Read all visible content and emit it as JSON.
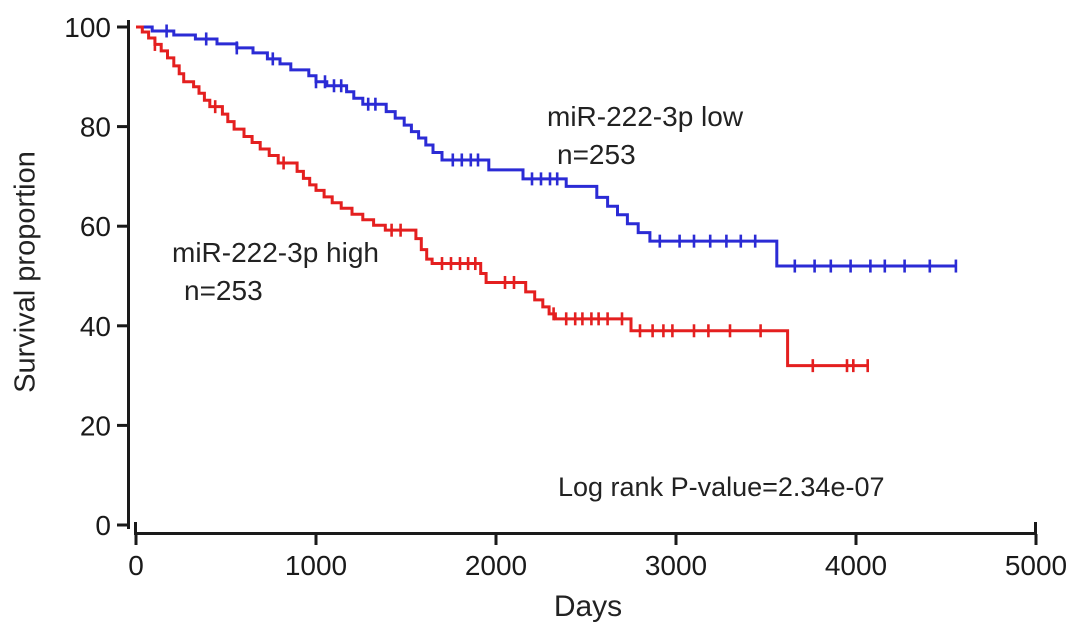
{
  "figure": {
    "background": "#ffffff",
    "axis_color": "#1a1a1a",
    "text_color": "#222222"
  },
  "chart_data": {
    "type": "line",
    "subtype": "kaplan-meier-step",
    "title": "",
    "xlabel": "Days",
    "ylabel": "Survival proportion",
    "xlim": [
      0,
      5000
    ],
    "ylim": [
      0,
      100
    ],
    "x_ticks": [
      0,
      1000,
      2000,
      3000,
      4000,
      5000
    ],
    "y_ticks": [
      0,
      20,
      40,
      60,
      80,
      100
    ],
    "grid": false,
    "legend_position": "inline-labels",
    "annotation": "Log rank P-value=2.34e-07",
    "series": [
      {
        "name": "miR-222-3p low",
        "n_label": "n=253",
        "color": "#2b2bd5",
        "steps": [
          [
            0,
            100
          ],
          [
            90,
            99.2
          ],
          [
            210,
            98.4
          ],
          [
            330,
            97.6
          ],
          [
            450,
            96.6
          ],
          [
            560,
            95.8
          ],
          [
            650,
            94.8
          ],
          [
            730,
            93.6
          ],
          [
            800,
            92.6
          ],
          [
            860,
            91.4
          ],
          [
            960,
            90.2
          ],
          [
            1000,
            89
          ],
          [
            1060,
            88.2
          ],
          [
            1170,
            87
          ],
          [
            1210,
            85.7
          ],
          [
            1260,
            84.5
          ],
          [
            1390,
            83
          ],
          [
            1440,
            81.7
          ],
          [
            1490,
            80.3
          ],
          [
            1530,
            79
          ],
          [
            1570,
            77.7
          ],
          [
            1610,
            76.3
          ],
          [
            1650,
            74.8
          ],
          [
            1700,
            73.3
          ],
          [
            1960,
            71.3
          ],
          [
            2150,
            69.5
          ],
          [
            2390,
            68
          ],
          [
            2560,
            65.8
          ],
          [
            2620,
            64
          ],
          [
            2675,
            62.3
          ],
          [
            2730,
            60.5
          ],
          [
            2790,
            58.7
          ],
          [
            2855,
            57
          ],
          [
            3560,
            52
          ],
          [
            4560,
            52
          ]
        ],
        "censor_ticks": [
          170,
          390,
          560,
          760,
          1000,
          1050,
          1100,
          1140,
          1290,
          1330,
          1760,
          1810,
          1860,
          1900,
          2200,
          2250,
          2300,
          2340,
          2910,
          3020,
          3100,
          3190,
          3280,
          3360,
          3440,
          3660,
          3770,
          3860,
          3970,
          4080,
          4160,
          4270,
          4410,
          4555
        ]
      },
      {
        "name": "miR-222-3p high",
        "n_label": "n=253",
        "color": "#e41f1f",
        "steps": [
          [
            0,
            100
          ],
          [
            35,
            99
          ],
          [
            70,
            97.8
          ],
          [
            105,
            96.5
          ],
          [
            140,
            95.2
          ],
          [
            175,
            93.8
          ],
          [
            210,
            92.2
          ],
          [
            240,
            90.6
          ],
          [
            265,
            89
          ],
          [
            320,
            88
          ],
          [
            350,
            86.7
          ],
          [
            380,
            85.3
          ],
          [
            410,
            84
          ],
          [
            480,
            82.5
          ],
          [
            510,
            81
          ],
          [
            545,
            79.5
          ],
          [
            600,
            78
          ],
          [
            645,
            76.8
          ],
          [
            690,
            75.5
          ],
          [
            740,
            74.2
          ],
          [
            790,
            72.7
          ],
          [
            895,
            71
          ],
          [
            930,
            69.6
          ],
          [
            965,
            68.3
          ],
          [
            1000,
            67.2
          ],
          [
            1045,
            65.9
          ],
          [
            1090,
            64.7
          ],
          [
            1140,
            63.6
          ],
          [
            1200,
            62.4
          ],
          [
            1260,
            61.3
          ],
          [
            1320,
            60.2
          ],
          [
            1385,
            59.2
          ],
          [
            1555,
            57.5
          ],
          [
            1585,
            55.3
          ],
          [
            1615,
            53.4
          ],
          [
            1645,
            52.5
          ],
          [
            1915,
            50.5
          ],
          [
            1945,
            48.7
          ],
          [
            2165,
            46.8
          ],
          [
            2215,
            45.2
          ],
          [
            2260,
            43.8
          ],
          [
            2295,
            42.4
          ],
          [
            2330,
            41.4
          ],
          [
            2750,
            39
          ],
          [
            3620,
            32
          ],
          [
            4070,
            32
          ]
        ],
        "censor_ticks": [
          105,
          440,
          820,
          1420,
          1470,
          1700,
          1750,
          1800,
          1845,
          1885,
          2050,
          2100,
          2320,
          2390,
          2440,
          2480,
          2530,
          2570,
          2620,
          2700,
          2800,
          2870,
          2930,
          2980,
          3100,
          3180,
          3300,
          3470,
          3760,
          3950,
          3985,
          4065
        ]
      }
    ]
  }
}
